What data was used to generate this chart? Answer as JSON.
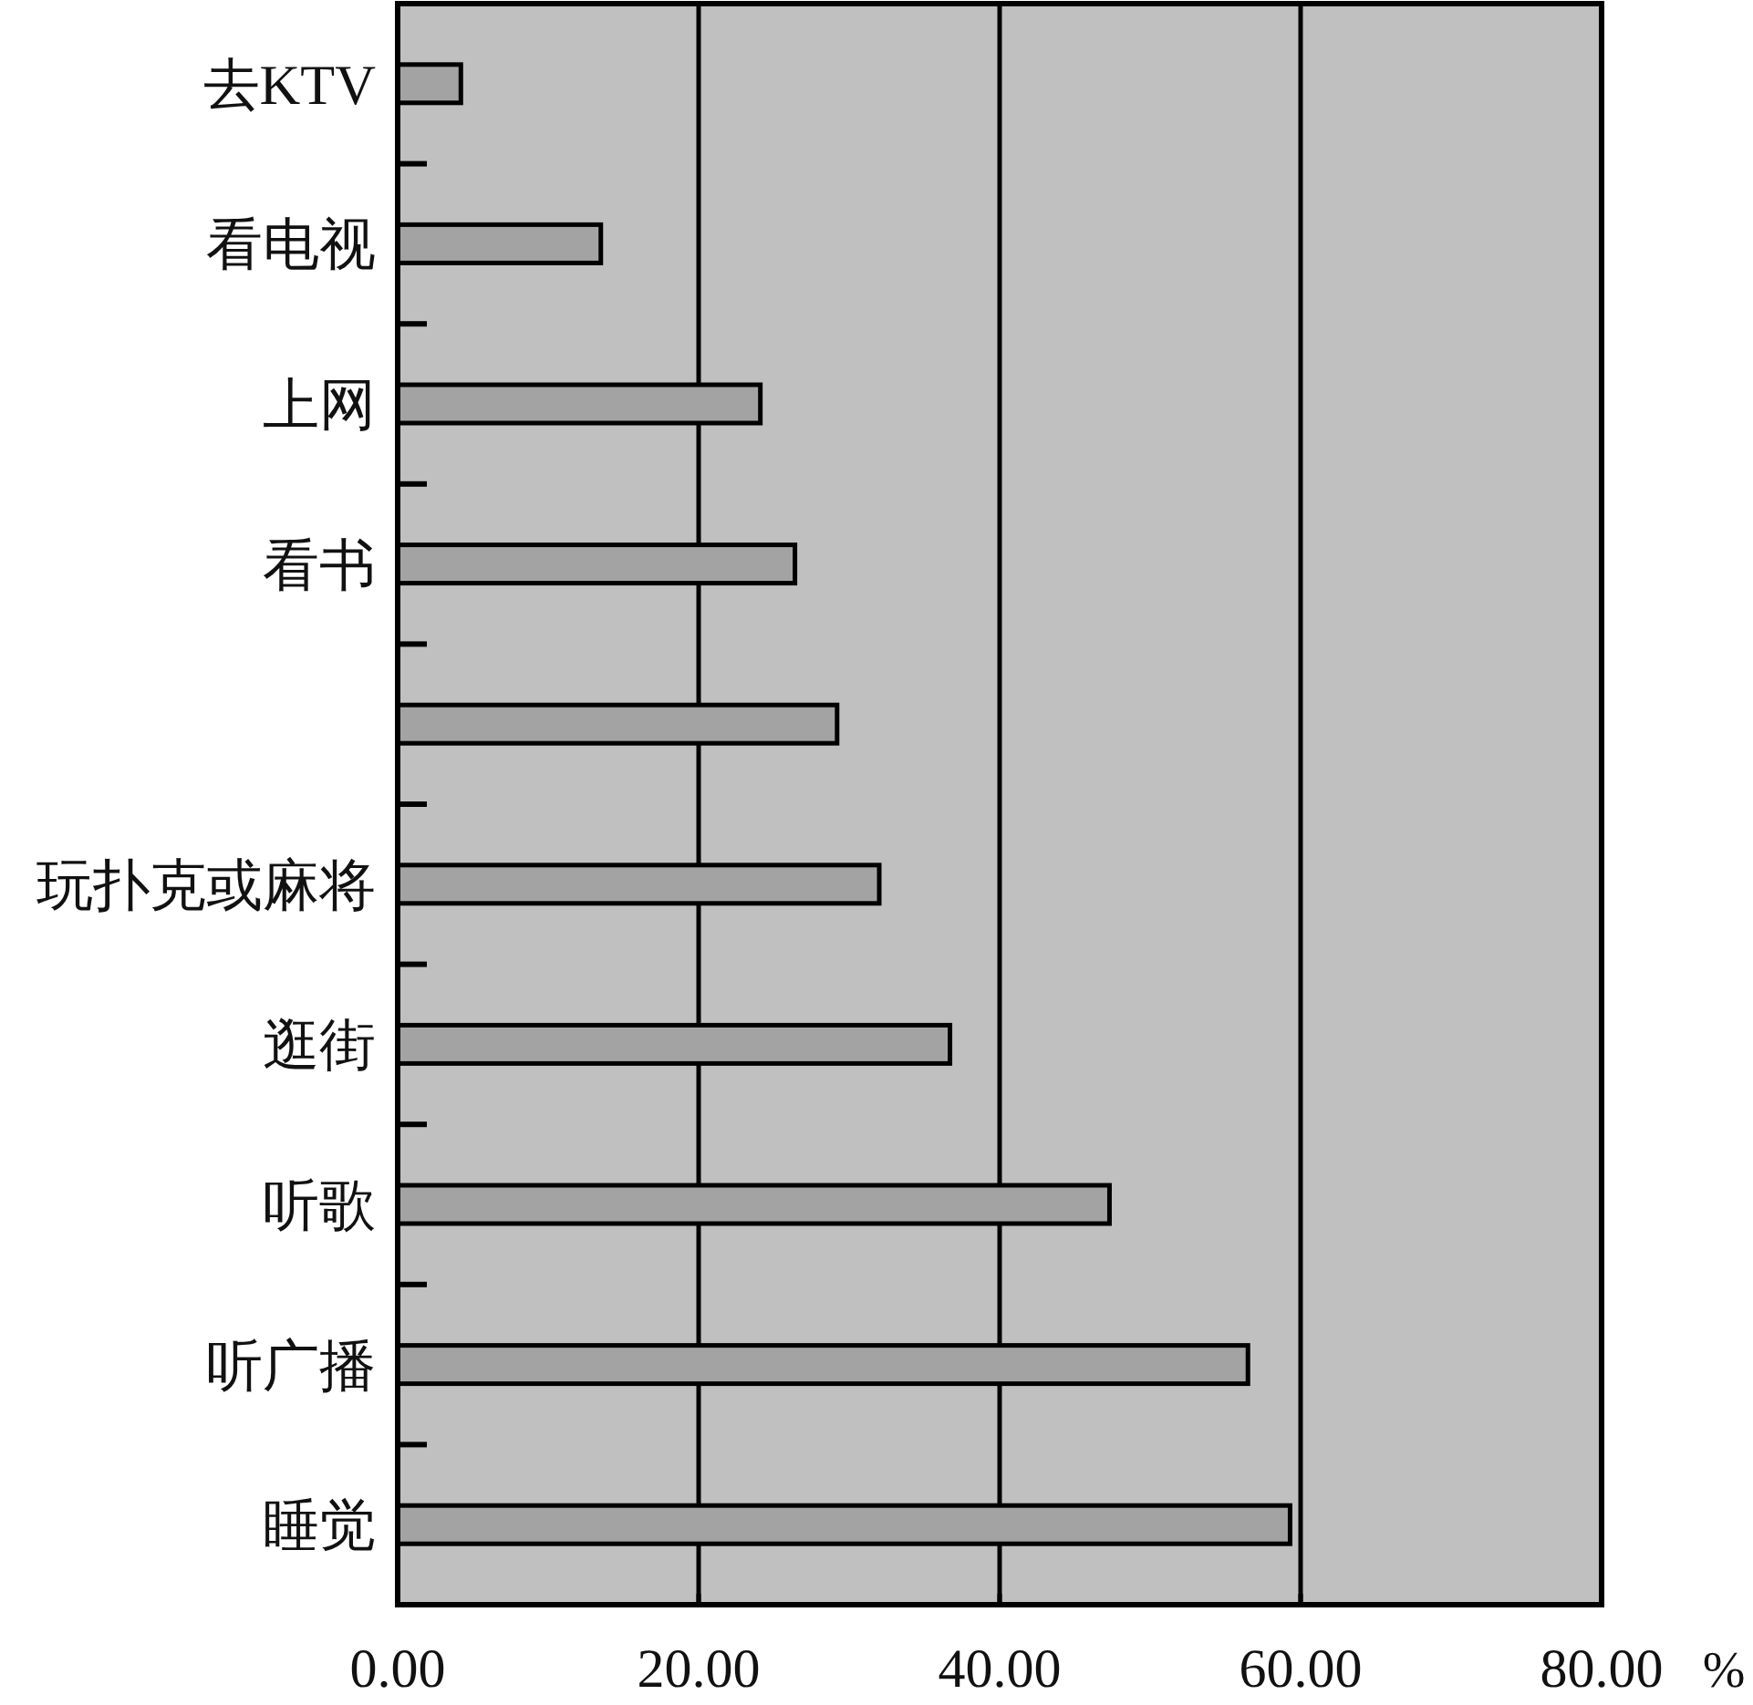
{
  "chart_data": {
    "type": "bar",
    "orientation": "horizontal",
    "xlabel": "%",
    "categories": [
      "去KTV",
      "看电视",
      "上网",
      "看书",
      null,
      "玩扑克或麻将",
      "逛街",
      "听歌",
      "听广播",
      "睡觉"
    ],
    "values": [
      4.2,
      13.5,
      24.1,
      26.4,
      29.2,
      32.0,
      36.7,
      47.3,
      56.5,
      59.3
    ],
    "color": "#a3a3a3",
    "xlim": [
      0,
      80
    ],
    "xticks": [
      {
        "value": 0,
        "label": "0.00"
      },
      {
        "value": 20,
        "label": "20.00"
      },
      {
        "value": 40,
        "label": "40.00"
      },
      {
        "value": 60,
        "label": "60.00"
      },
      {
        "value": 80,
        "label": "80.00"
      }
    ],
    "grid": "x"
  }
}
